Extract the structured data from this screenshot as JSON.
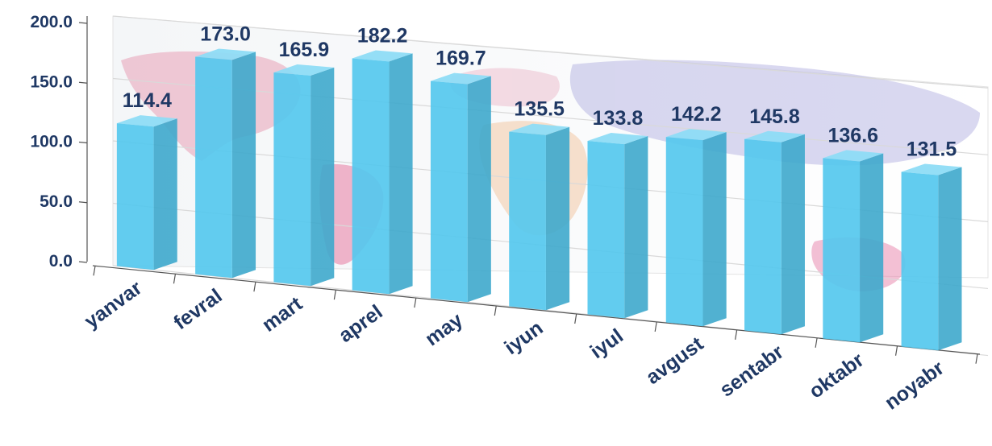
{
  "chart_data": {
    "type": "bar",
    "categories": [
      "yanvar",
      "fevral",
      "mart",
      "aprel",
      "may",
      "iyun",
      "iyul",
      "avgust",
      "sentabr",
      "oktabr",
      "noyabr"
    ],
    "values": [
      114.4,
      173.0,
      165.9,
      182.2,
      169.7,
      135.5,
      133.8,
      142.2,
      145.8,
      136.6,
      131.5
    ],
    "value_labels": [
      "114.4",
      "173.0",
      "165.9",
      "182.2",
      "169.7",
      "135.5",
      "133.8",
      "142.2",
      "145.8",
      "136.6",
      "131.5"
    ],
    "y_ticks": [
      "0.0",
      "50.0",
      "100.0",
      "150.0",
      "200.0"
    ],
    "y_tick_values": [
      0,
      50,
      100,
      150,
      200
    ],
    "ylim": [
      0,
      200
    ],
    "title": "",
    "xlabel": "",
    "ylabel": "",
    "grid": true,
    "legend": "none",
    "style": "3d-perspective-column",
    "colors": {
      "bar_front": "#55c8ee",
      "bar_side": "#3ea9cc",
      "bar_top": "#8edcf6",
      "labels": "#1f3864",
      "axis": "#555555",
      "grid": "#d9d9d9"
    },
    "background": "world-map"
  }
}
